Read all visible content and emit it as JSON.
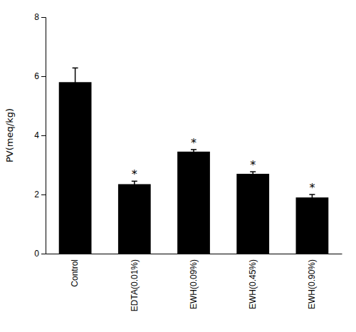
{
  "chart_data": {
    "type": "bar",
    "categories": [
      "Control",
      "EDTA(0.01%)",
      "EWH(0.09%)",
      "EWH(0.45%)",
      "EWH(0.90%)"
    ],
    "values": [
      5.8,
      2.35,
      3.45,
      2.7,
      1.9
    ],
    "errors": [
      0.48,
      0.1,
      0.07,
      0.07,
      0.1
    ],
    "color": "#000000",
    "ylabel": "PV(meq/kg)",
    "ylim": [
      0,
      8
    ],
    "yticks": [
      0,
      2,
      4,
      6,
      8
    ],
    "grid": false,
    "annotations": [
      {
        "text": "*",
        "x": "EDTA(0.01%)"
      },
      {
        "text": "*",
        "x": "EWH(0.09%)"
      },
      {
        "text": "*",
        "x": "EWH(0.45%)"
      },
      {
        "text": "*",
        "x": "EWH(0.90%)"
      }
    ]
  }
}
